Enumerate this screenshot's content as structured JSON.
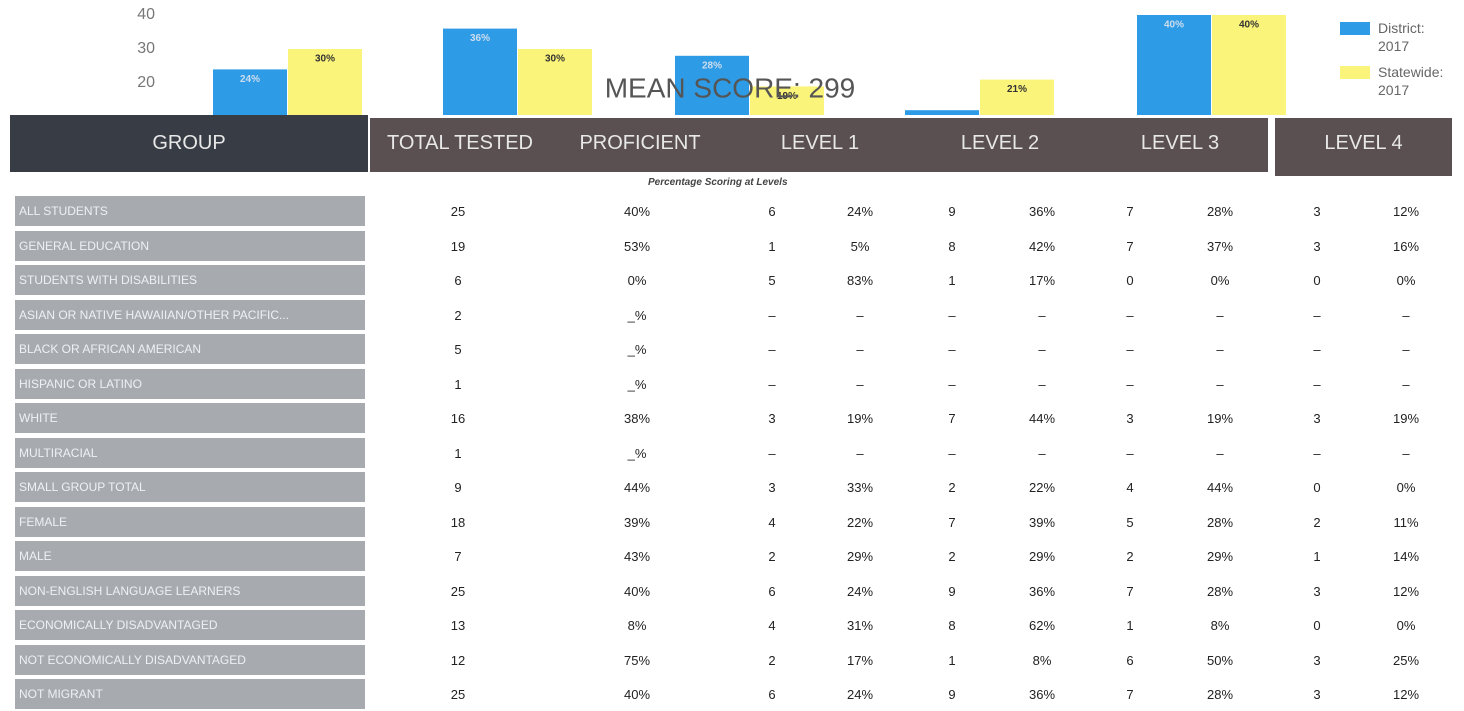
{
  "chart_data": {
    "type": "bar",
    "title": "MEAN SCORE: 299",
    "ylim": [
      0,
      44
    ],
    "yticks": [
      20,
      30,
      40
    ],
    "series": [
      {
        "name": "District: 2017",
        "color": "#2e9be6",
        "values": [
          24,
          36,
          28,
          12,
          40
        ],
        "value_labels": [
          "24%",
          "36%",
          "28%",
          null,
          "40%"
        ]
      },
      {
        "name": "Statewide: 2017",
        "color": "#fbf47a",
        "values": [
          30,
          30,
          19,
          21,
          40
        ],
        "value_labels": [
          "30%",
          "30%",
          "19%",
          "21%",
          "40%"
        ]
      }
    ]
  },
  "table": {
    "headers": [
      "GROUP",
      "TOTAL TESTED",
      "PROFICIENT",
      "LEVEL 1",
      "LEVEL 2",
      "LEVEL 3",
      "LEVEL 4"
    ],
    "subheader": "Percentage Scoring at Levels",
    "rows": [
      [
        "ALL STUDENTS",
        "25",
        "40%",
        "6",
        "24%",
        "9",
        "36%",
        "7",
        "28%",
        "3",
        "12%"
      ],
      [
        "GENERAL EDUCATION",
        "19",
        "53%",
        "1",
        "5%",
        "8",
        "42%",
        "7",
        "37%",
        "3",
        "16%"
      ],
      [
        "STUDENTS WITH DISABILITIES",
        "6",
        "0%",
        "5",
        "83%",
        "1",
        "17%",
        "0",
        "0%",
        "0",
        "0%"
      ],
      [
        "ASIAN OR NATIVE HAWAIIAN/OTHER PACIFIC...",
        "2",
        "_%",
        "–",
        "–",
        "–",
        "–",
        "–",
        "–",
        "–",
        "–"
      ],
      [
        "BLACK OR AFRICAN AMERICAN",
        "5",
        "_%",
        "–",
        "–",
        "–",
        "–",
        "–",
        "–",
        "–",
        "–"
      ],
      [
        "HISPANIC OR LATINO",
        "1",
        "_%",
        "–",
        "–",
        "–",
        "–",
        "–",
        "–",
        "–",
        "–"
      ],
      [
        "WHITE",
        "16",
        "38%",
        "3",
        "19%",
        "7",
        "44%",
        "3",
        "19%",
        "3",
        "19%"
      ],
      [
        "MULTIRACIAL",
        "1",
        "_%",
        "–",
        "–",
        "–",
        "–",
        "–",
        "–",
        "–",
        "–"
      ],
      [
        "SMALL GROUP TOTAL",
        "9",
        "44%",
        "3",
        "33%",
        "2",
        "22%",
        "4",
        "44%",
        "0",
        "0%"
      ],
      [
        "FEMALE",
        "18",
        "39%",
        "4",
        "22%",
        "7",
        "39%",
        "5",
        "28%",
        "2",
        "11%"
      ],
      [
        "MALE",
        "7",
        "43%",
        "2",
        "29%",
        "2",
        "29%",
        "2",
        "29%",
        "1",
        "14%"
      ],
      [
        "NON-ENGLISH LANGUAGE LEARNERS",
        "25",
        "40%",
        "6",
        "24%",
        "9",
        "36%",
        "7",
        "28%",
        "3",
        "12%"
      ],
      [
        "ECONOMICALLY DISADVANTAGED",
        "13",
        "8%",
        "4",
        "31%",
        "8",
        "62%",
        "1",
        "8%",
        "0",
        "0%"
      ],
      [
        "NOT ECONOMICALLY DISADVANTAGED",
        "12",
        "75%",
        "2",
        "17%",
        "1",
        "8%",
        "6",
        "50%",
        "3",
        "25%"
      ],
      [
        "NOT MIGRANT",
        "25",
        "40%",
        "6",
        "24%",
        "9",
        "36%",
        "7",
        "28%",
        "3",
        "12%"
      ]
    ]
  }
}
